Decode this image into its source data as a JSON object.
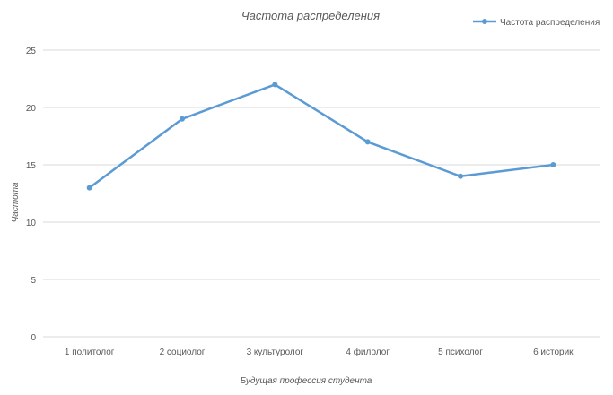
{
  "chart_data": {
    "type": "line",
    "title": "Частота распределения",
    "xlabel": "Будущая профессия студента",
    "ylabel": "Частота",
    "categories": [
      "1 политолог",
      "2 социолог",
      "3 культуролог",
      "4 филолог",
      "5 психолог",
      "6 историк"
    ],
    "series": [
      {
        "name": "Частота распределения",
        "values": [
          13,
          19,
          22,
          17,
          14,
          15
        ],
        "color": "#5b9bd5"
      }
    ],
    "ylim": [
      0,
      25
    ],
    "yticks": [
      0,
      5,
      10,
      15,
      20,
      25
    ],
    "grid": true,
    "legend_position": "top-right"
  }
}
